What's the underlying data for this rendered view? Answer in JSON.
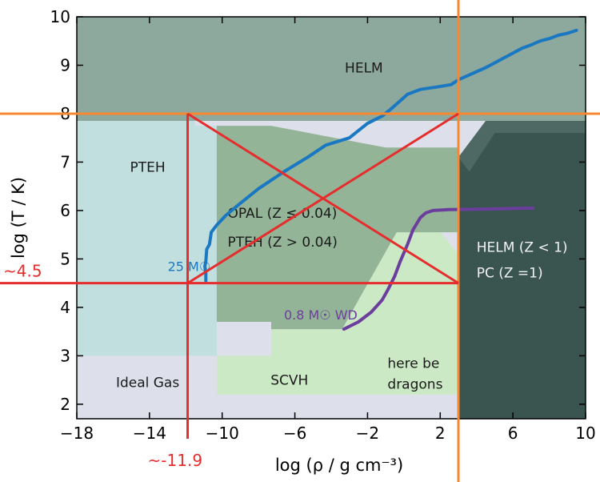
{
  "chart_data": {
    "type": "area",
    "title": "",
    "xlabel": "log (ρ / g cm⁻³)",
    "ylabel": "log (T / K)",
    "xlim": [
      -18,
      10
    ],
    "ylim": [
      1.7,
      10
    ],
    "xticks": [
      {
        "value": -18,
        "label": "−18"
      },
      {
        "value": -14,
        "label": "−14"
      },
      {
        "value": -10,
        "label": "−10"
      },
      {
        "value": -6,
        "label": "−6"
      },
      {
        "value": -2,
        "label": "−2"
      },
      {
        "value": 2,
        "label": "2"
      },
      {
        "value": 6,
        "label": "6"
      },
      {
        "value": 10,
        "label": "10"
      }
    ],
    "yticks": [
      {
        "value": 2,
        "label": "2"
      },
      {
        "value": 3,
        "label": "3"
      },
      {
        "value": 4,
        "label": "4"
      },
      {
        "value": 5,
        "label": "5"
      },
      {
        "value": 6,
        "label": "6"
      },
      {
        "value": 7,
        "label": "7"
      },
      {
        "value": 8,
        "label": "8"
      },
      {
        "value": 9,
        "label": "9"
      },
      {
        "value": 10,
        "label": "10"
      }
    ],
    "regions": [
      {
        "name": "Ideal Gas",
        "color": "#dde0ea",
        "label_at": [
          -14.1,
          2.45
        ],
        "polygon": [
          [
            -18,
            1.7
          ],
          [
            10,
            1.7
          ],
          [
            10,
            10
          ],
          [
            -18,
            10
          ]
        ]
      },
      {
        "name": "HELM",
        "color": "#8da89c",
        "label_at": [
          -2.2,
          8.95
        ],
        "polygon": [
          [
            -18,
            7.85
          ],
          [
            -18,
            10
          ],
          [
            10,
            10
          ],
          [
            10,
            7.85
          ]
        ]
      },
      {
        "name": "PTEH",
        "color": "#c2dfe0",
        "label_at": [
          -14.1,
          6.9
        ],
        "polygon": [
          [
            -18,
            3.0
          ],
          [
            -18,
            7.85
          ],
          [
            -11.5,
            7.85
          ],
          [
            -11.5,
            7.75
          ],
          [
            -10.3,
            7.75
          ],
          [
            -10.3,
            3.0
          ]
        ]
      },
      {
        "name": "SCVH",
        "color": "#cce9c5",
        "label_at": [
          -6.3,
          2.5
        ],
        "polygon": [
          [
            -10.3,
            2.2
          ],
          [
            -10.3,
            3.0
          ],
          [
            -7.3,
            3.0
          ],
          [
            -7.3,
            3.55
          ],
          [
            -3.4,
            3.55
          ],
          [
            -0.4,
            5.55
          ],
          [
            2.0,
            5.55
          ],
          [
            3.0,
            5.1
          ],
          [
            3.0,
            2.2
          ],
          [
            -2.7,
            2.2
          ]
        ]
      },
      {
        "name": "OPAL",
        "color": "#94b497",
        "label_at": [
          -3.7,
          5.7
        ],
        "polygon": [
          [
            -10.3,
            3.7
          ],
          [
            -10.3,
            7.75
          ],
          [
            -7.3,
            7.75
          ],
          [
            -4.5,
            7.55
          ],
          [
            -1.0,
            7.3
          ],
          [
            3.0,
            7.3
          ],
          [
            3.0,
            5.55
          ],
          [
            -0.4,
            5.55
          ],
          [
            -3.4,
            3.55
          ],
          [
            -7.3,
            3.55
          ],
          [
            -7.3,
            3.7
          ]
        ]
      },
      {
        "name": "HELM (Z < 1) PC (Z = 1)",
        "color": "#3a5450",
        "label_at": [
          6.1,
          5.0
        ],
        "polygon": [
          [
            3.0,
            1.7
          ],
          [
            3.0,
            7.1
          ],
          [
            4.5,
            7.85
          ],
          [
            10,
            7.85
          ],
          [
            10,
            1.7
          ]
        ]
      }
    ],
    "region_labels": {
      "helm": "HELM",
      "pteh": "PTEH",
      "opal_1": "OPAL (Z ≤ 0.04)",
      "opal_2": "PTEH (Z > 0.04)",
      "helm_pc_1": "HELM (Z < 1)",
      "helm_pc_2": "PC (Z =1)",
      "ideal_gas": "Ideal Gas",
      "scvh": "SCVH",
      "dragons_1": "here be",
      "dragons_2": "dragons"
    },
    "series": [
      {
        "name": "25 M☉",
        "color": "#1a78c2",
        "x": [
          -10.9,
          -10.9,
          -10.95,
          -10.9,
          -10.85,
          -10.7,
          -10.6,
          -10.3,
          -9.8,
          -9.0,
          -8.0,
          -6.6,
          -5.3,
          -4.3,
          -3.0,
          -2.0,
          -1.2,
          -0.7,
          0.2,
          0.9,
          1.8,
          2.6,
          3.0,
          4.5,
          5.0,
          5.5,
          6.0,
          6.5,
          7.0,
          7.5,
          8.0,
          8.5,
          9.0,
          9.5
        ],
        "y": [
          4.55,
          4.7,
          4.85,
          4.95,
          5.2,
          5.3,
          5.55,
          5.7,
          5.9,
          6.15,
          6.45,
          6.8,
          7.1,
          7.35,
          7.5,
          7.8,
          7.95,
          8.1,
          8.4,
          8.5,
          8.55,
          8.6,
          8.7,
          8.95,
          9.05,
          9.15,
          9.25,
          9.35,
          9.42,
          9.5,
          9.55,
          9.62,
          9.66,
          9.72
        ]
      },
      {
        "name": "0.8 M☉ WD",
        "color": "#6b3e9e",
        "x": [
          -3.3,
          -2.5,
          -1.8,
          -1.2,
          -0.9,
          -0.7,
          -0.5,
          -0.2,
          0.2,
          0.5,
          0.9,
          1.2,
          1.6,
          2.5,
          4.5,
          7.1
        ],
        "y": [
          3.55,
          3.7,
          3.9,
          4.15,
          4.35,
          4.5,
          4.65,
          4.95,
          5.3,
          5.6,
          5.85,
          5.95,
          6.0,
          6.02,
          6.03,
          6.05
        ]
      }
    ],
    "series_labels": [
      {
        "name": "25 M☉",
        "at": [
          -13.0,
          4.85
        ]
      },
      {
        "name": "0.8 M☉ WD",
        "at": [
          -6.6,
          3.85
        ]
      }
    ],
    "annotations": {
      "cross_color": "#e52d2d",
      "guide_color": "#f7882f",
      "orange_x": 3.0,
      "orange_y": 8.0,
      "red_x": -11.9,
      "red_y": 4.5,
      "label_x": "~-11.9",
      "label_y": "~4.5"
    },
    "grid": false,
    "legend": "none"
  }
}
